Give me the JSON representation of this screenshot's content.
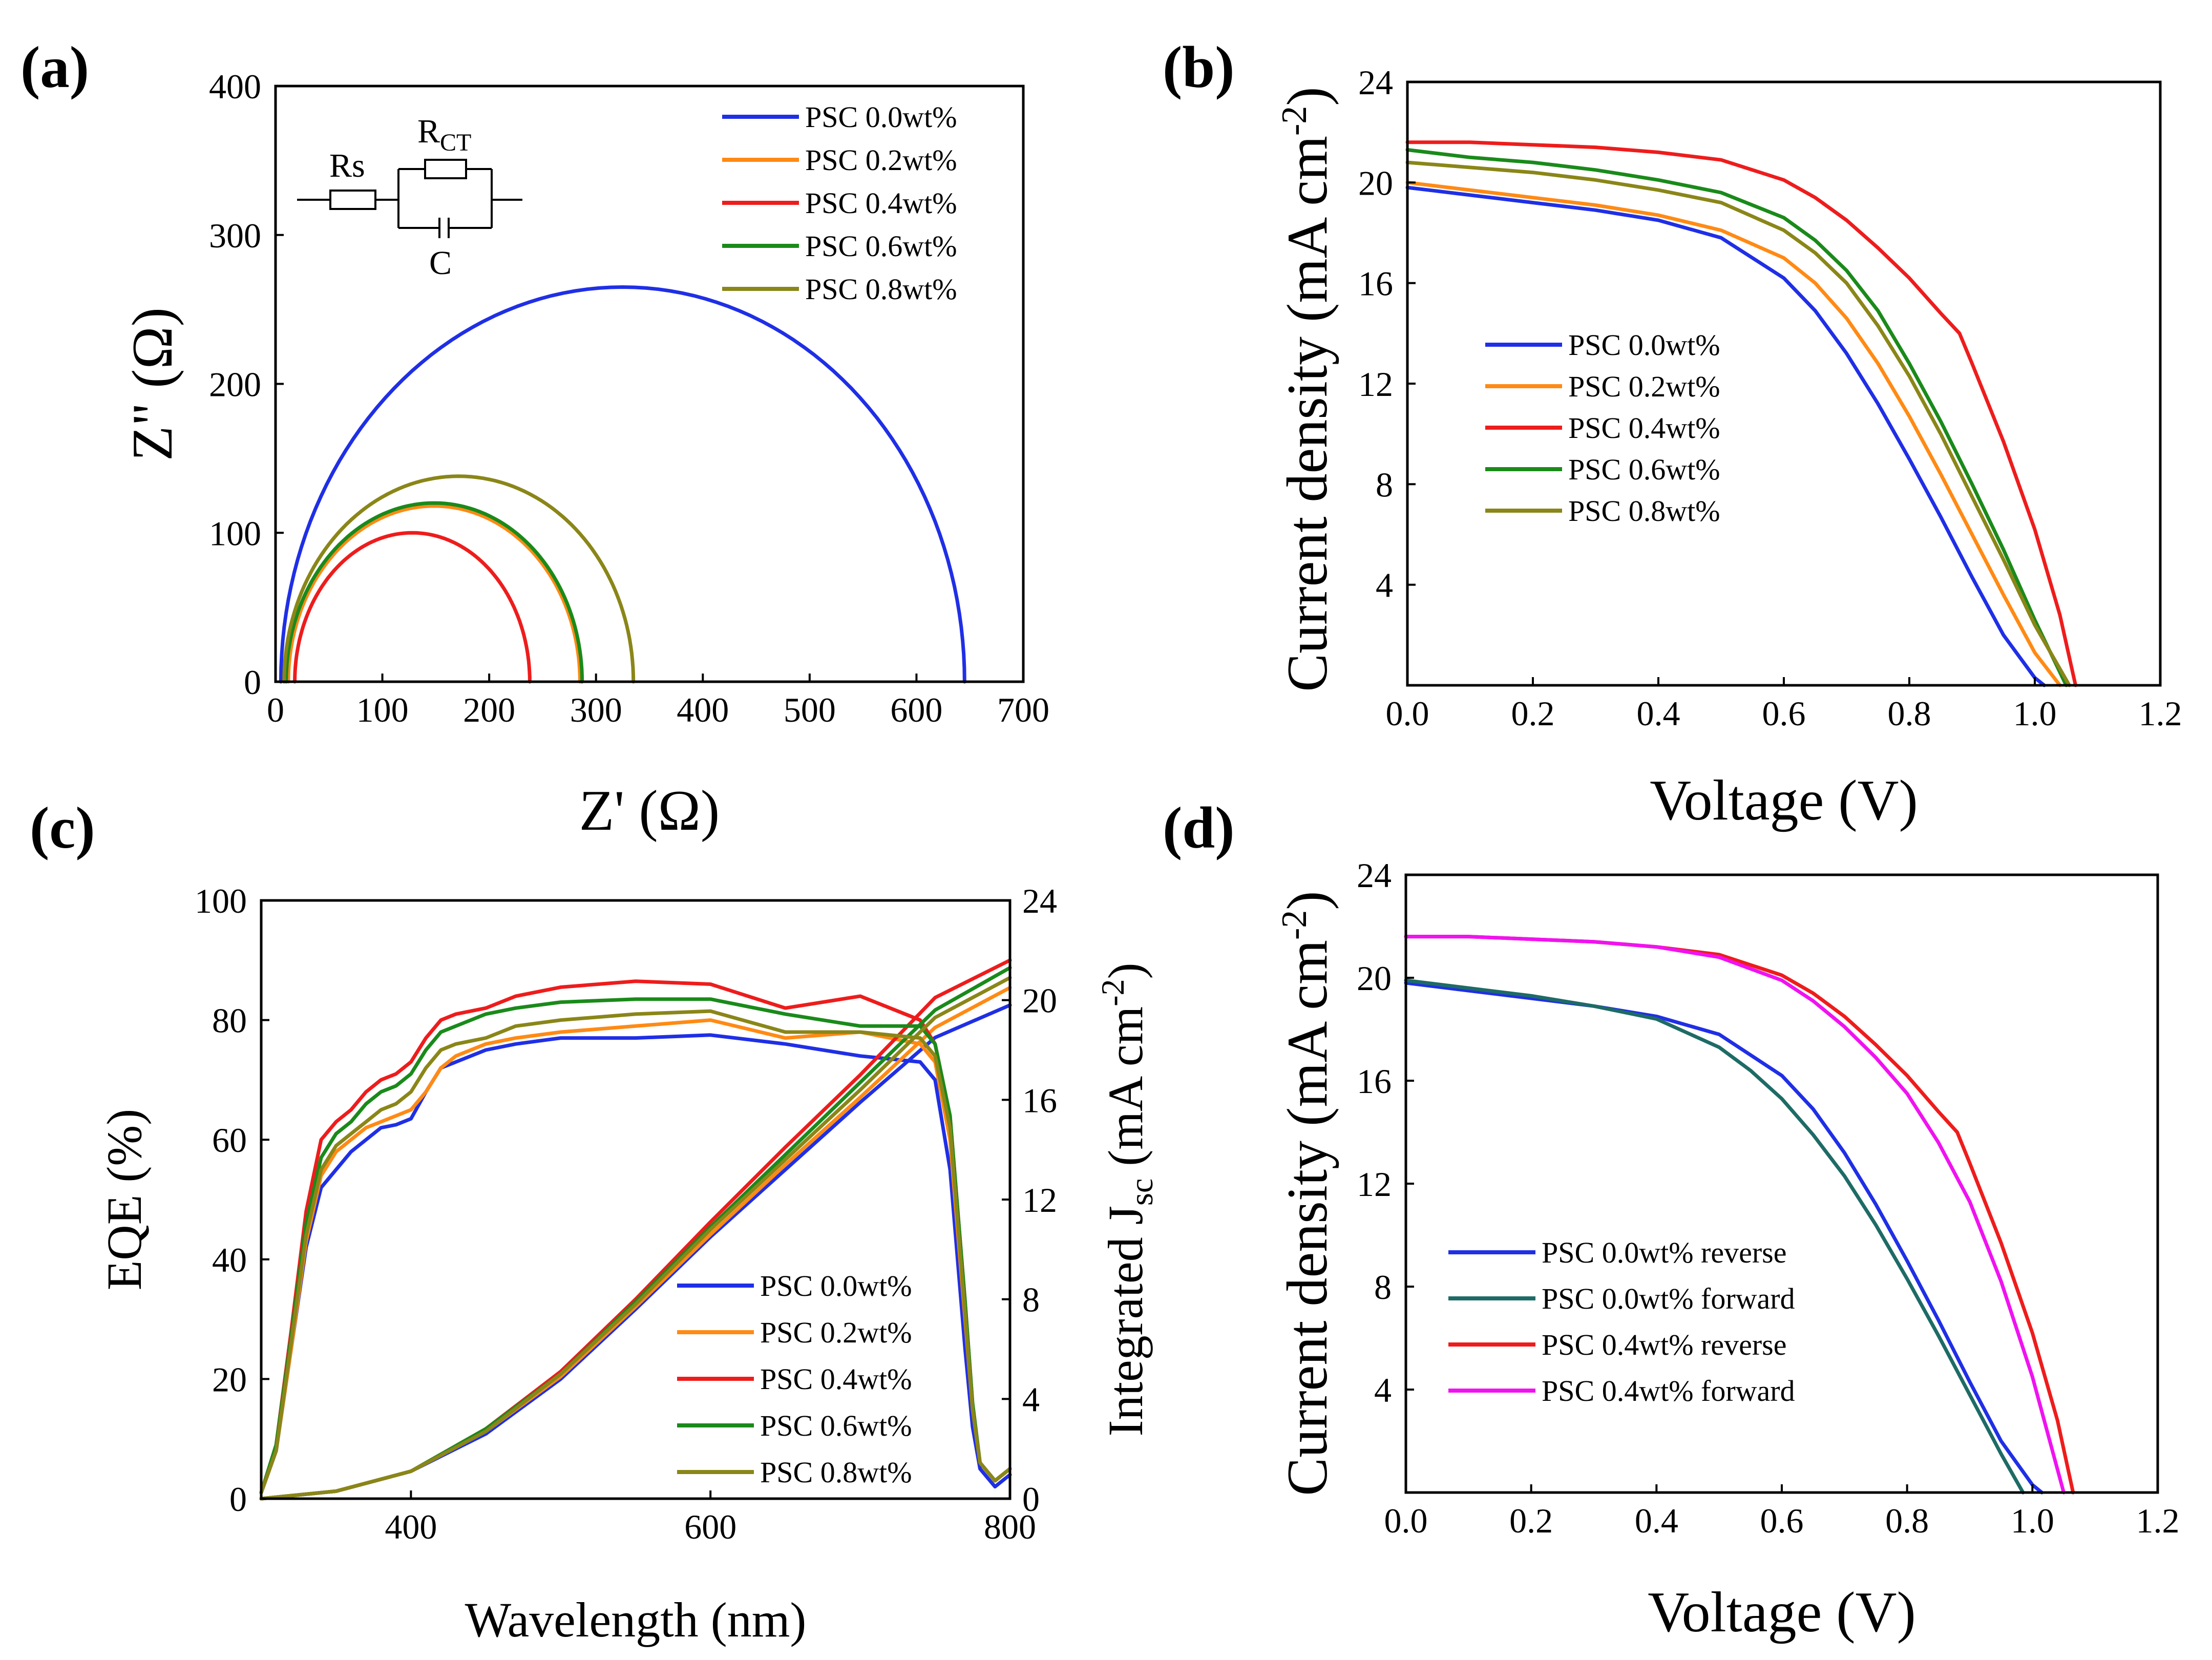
{
  "colors": {
    "psc_0_0": "#1f2fe6",
    "psc_0_2": "#ff8a14",
    "psc_0_4": "#ee1c1c",
    "psc_0_6": "#1a8a1a",
    "psc_0_8": "#8a8618",
    "psc_0_0_forward": "#1e6b66",
    "psc_0_4_forward": "#f012f0",
    "axis": "#000000"
  },
  "chart_data": [
    {
      "panel": "(a)",
      "type": "line",
      "title": "",
      "xlabel": "Z' (Ω)",
      "ylabel": "Z\" (Ω)",
      "xlim": [
        0,
        700
      ],
      "ylim": [
        0,
        400
      ],
      "xticks": [
        0,
        100,
        200,
        300,
        400,
        500,
        600,
        700
      ],
      "yticks": [
        0,
        100,
        200,
        300,
        400
      ],
      "legend_position": "top-right",
      "inset_circuit": {
        "rs": "Rs",
        "rct": "R",
        "rct_sub": "CT",
        "c": "C"
      },
      "series": [
        {
          "name": "PSC 0.0wt%",
          "color_key": "psc_0_0",
          "semicircle": {
            "x_start": 5,
            "x_end": 645,
            "peak": 265
          }
        },
        {
          "name": "PSC 0.2wt%",
          "color_key": "psc_0_2",
          "semicircle": {
            "x_start": 12,
            "x_end": 285,
            "peak": 118
          }
        },
        {
          "name": "PSC 0.4wt%",
          "color_key": "psc_0_4",
          "semicircle": {
            "x_start": 18,
            "x_end": 238,
            "peak": 100
          }
        },
        {
          "name": "PSC 0.6wt%",
          "color_key": "psc_0_6",
          "semicircle": {
            "x_start": 10,
            "x_end": 287,
            "peak": 120
          }
        },
        {
          "name": "PSC 0.8wt%",
          "color_key": "psc_0_8",
          "semicircle": {
            "x_start": 8,
            "x_end": 335,
            "peak": 138
          }
        }
      ]
    },
    {
      "panel": "(b)",
      "type": "line",
      "title": "",
      "xlabel": "Voltage (V)",
      "ylabel": "Current density (mA cm",
      "ylabel_sup": "-2",
      "ylabel_end": ")",
      "xlim": [
        0,
        1.2
      ],
      "ylim": [
        0,
        24
      ],
      "xticks": [
        "0.0",
        "0.2",
        "0.4",
        "0.6",
        "0.8",
        "1.0",
        "1.2"
      ],
      "yticks": [
        4,
        8,
        12,
        16,
        20,
        24
      ],
      "legend_position": "middle-left",
      "series": [
        {
          "name": "PSC 0.0wt%",
          "color_key": "psc_0_0",
          "x": [
            0,
            0.1,
            0.2,
            0.3,
            0.4,
            0.5,
            0.6,
            0.65,
            0.7,
            0.75,
            0.8,
            0.85,
            0.9,
            0.95,
            1.0,
            1.015
          ],
          "y": [
            19.8,
            19.5,
            19.2,
            18.9,
            18.5,
            17.8,
            16.2,
            14.9,
            13.2,
            11.2,
            9.0,
            6.7,
            4.3,
            2.0,
            0.3,
            0
          ]
        },
        {
          "name": "PSC 0.2wt%",
          "color_key": "psc_0_2",
          "x": [
            0,
            0.1,
            0.2,
            0.3,
            0.4,
            0.5,
            0.6,
            0.65,
            0.7,
            0.75,
            0.8,
            0.85,
            0.9,
            0.95,
            1.0,
            1.04
          ],
          "y": [
            20.0,
            19.7,
            19.4,
            19.1,
            18.7,
            18.1,
            17.0,
            16.0,
            14.6,
            12.8,
            10.7,
            8.4,
            6.0,
            3.6,
            1.3,
            0
          ]
        },
        {
          "name": "PSC 0.4wt%",
          "color_key": "psc_0_4",
          "x": [
            0,
            0.1,
            0.2,
            0.3,
            0.35,
            0.4,
            0.5,
            0.6,
            0.65,
            0.7,
            0.75,
            0.8,
            0.85,
            0.88,
            0.9,
            0.95,
            1.0,
            1.04,
            1.065
          ],
          "y": [
            21.6,
            21.6,
            21.5,
            21.4,
            21.3,
            21.2,
            20.9,
            20.1,
            19.4,
            18.5,
            17.4,
            16.2,
            14.8,
            14.0,
            12.8,
            9.7,
            6.2,
            2.8,
            0
          ]
        },
        {
          "name": "PSC 0.6wt%",
          "color_key": "psc_0_6",
          "x": [
            0,
            0.1,
            0.2,
            0.3,
            0.4,
            0.5,
            0.6,
            0.65,
            0.7,
            0.75,
            0.8,
            0.85,
            0.9,
            0.95,
            1.0,
            1.05
          ],
          "y": [
            21.3,
            21.0,
            20.8,
            20.5,
            20.1,
            19.6,
            18.6,
            17.7,
            16.5,
            14.9,
            12.8,
            10.5,
            8.0,
            5.4,
            2.6,
            0
          ]
        },
        {
          "name": "PSC 0.8wt%",
          "color_key": "psc_0_8",
          "x": [
            0,
            0.1,
            0.2,
            0.3,
            0.4,
            0.5,
            0.6,
            0.65,
            0.7,
            0.75,
            0.8,
            0.85,
            0.9,
            0.95,
            1.0,
            1.055
          ],
          "y": [
            20.8,
            20.6,
            20.4,
            20.1,
            19.7,
            19.2,
            18.1,
            17.2,
            16.0,
            14.3,
            12.3,
            10.0,
            7.5,
            5.0,
            2.4,
            0
          ]
        }
      ]
    },
    {
      "panel": "(c)",
      "type": "line",
      "title": "",
      "xlabel": "Wavelength (nm)",
      "ylabel": "EQE (%)",
      "ylabel_right": "Integrated J",
      "ylabel_right_sub": "sc",
      "ylabel_right_mid": " (mA cm",
      "ylabel_right_sup": "-2",
      "ylabel_right_end": ")",
      "xlim": [
        300,
        800
      ],
      "ylim": [
        0,
        100
      ],
      "ylim_right": [
        0,
        24
      ],
      "xticks": [
        400,
        600,
        800
      ],
      "yticks": [
        0,
        20,
        40,
        60,
        80,
        100
      ],
      "yticks_right": [
        0,
        4,
        8,
        12,
        16,
        20,
        24
      ],
      "legend_position": "bottom-right",
      "series": [
        {
          "name": "PSC 0.0wt%",
          "color_key": "psc_0_0",
          "eqe_x": [
            300,
            310,
            320,
            330,
            340,
            350,
            360,
            370,
            380,
            390,
            400,
            410,
            420,
            430,
            450,
            470,
            500,
            550,
            600,
            650,
            700,
            740,
            750,
            760,
            770,
            775,
            780,
            790,
            800
          ],
          "eqe_y": [
            1,
            8,
            25,
            42,
            52,
            55,
            58,
            60,
            62,
            62.5,
            63.5,
            68,
            72,
            73,
            75,
            76,
            77,
            77,
            77.5,
            76,
            74,
            73,
            70,
            55,
            25,
            12,
            5,
            2,
            4
          ],
          "jsc_x": [
            300,
            350,
            400,
            450,
            500,
            550,
            600,
            650,
            700,
            750,
            800
          ],
          "jsc_y": [
            0.0,
            0.3,
            1.1,
            2.6,
            4.8,
            7.6,
            10.5,
            13.2,
            15.9,
            18.5,
            19.8
          ]
        },
        {
          "name": "PSC 0.2wt%",
          "color_key": "psc_0_2",
          "eqe_x": [
            300,
            310,
            320,
            330,
            340,
            350,
            360,
            370,
            380,
            390,
            400,
            410,
            420,
            430,
            450,
            470,
            500,
            550,
            600,
            650,
            700,
            740,
            750,
            760,
            770,
            775,
            780,
            790,
            800
          ],
          "eqe_y": [
            1,
            8,
            25,
            43,
            54,
            58,
            60,
            62,
            63,
            64,
            65,
            68,
            72,
            74,
            76,
            77,
            78,
            79,
            80,
            77,
            78,
            76,
            73,
            60,
            30,
            15,
            6,
            3,
            5
          ],
          "jsc_x": [
            300,
            350,
            400,
            450,
            500,
            550,
            600,
            650,
            700,
            750,
            800
          ],
          "jsc_y": [
            0.0,
            0.3,
            1.1,
            2.7,
            4.9,
            7.7,
            10.6,
            13.4,
            16.1,
            18.9,
            20.5
          ]
        },
        {
          "name": "PSC 0.4wt%",
          "color_key": "psc_0_4",
          "eqe_x": [
            300,
            310,
            320,
            330,
            340,
            350,
            360,
            370,
            380,
            390,
            400,
            410,
            420,
            430,
            450,
            470,
            500,
            550,
            600,
            650,
            700,
            740,
            750,
            760,
            770,
            775,
            780,
            790,
            800
          ],
          "eqe_y": [
            1,
            9,
            28,
            48,
            60,
            63,
            65,
            68,
            70,
            71,
            73,
            77,
            80,
            81,
            82,
            84,
            85.5,
            86.5,
            86,
            82,
            84,
            80,
            76,
            64,
            33,
            16,
            6,
            3,
            5
          ],
          "jsc_x": [
            300,
            350,
            400,
            450,
            500,
            550,
            600,
            650,
            700,
            750,
            800
          ],
          "jsc_y": [
            0.0,
            0.3,
            1.1,
            2.8,
            5.1,
            8.0,
            11.1,
            14.1,
            17.0,
            20.1,
            21.6
          ]
        },
        {
          "name": "PSC 0.6wt%",
          "color_key": "psc_0_6",
          "eqe_x": [
            300,
            310,
            320,
            330,
            340,
            350,
            360,
            370,
            380,
            390,
            400,
            410,
            420,
            430,
            450,
            470,
            500,
            550,
            600,
            650,
            700,
            740,
            750,
            760,
            770,
            775,
            780,
            790,
            800
          ],
          "eqe_y": [
            1,
            9,
            27,
            46,
            57,
            61,
            63,
            66,
            68,
            69,
            71,
            75,
            78,
            79,
            81,
            82,
            83,
            83.5,
            83.5,
            81,
            79,
            79,
            76,
            64,
            33,
            16,
            6,
            3,
            5
          ],
          "jsc_x": [
            300,
            350,
            400,
            450,
            500,
            550,
            600,
            650,
            700,
            750,
            800
          ],
          "jsc_y": [
            0.0,
            0.3,
            1.1,
            2.8,
            5.0,
            7.9,
            10.9,
            13.8,
            16.7,
            19.6,
            21.3
          ]
        },
        {
          "name": "PSC 0.8wt%",
          "color_key": "psc_0_8",
          "eqe_x": [
            300,
            310,
            320,
            330,
            340,
            350,
            360,
            370,
            380,
            390,
            400,
            410,
            420,
            430,
            450,
            470,
            500,
            550,
            600,
            650,
            700,
            740,
            750,
            760,
            770,
            775,
            780,
            790,
            800
          ],
          "eqe_y": [
            1,
            8,
            26,
            44,
            55,
            59,
            61,
            63,
            65,
            66,
            68,
            72,
            75,
            76,
            77,
            79,
            80,
            81,
            81.5,
            78,
            78,
            77,
            74,
            62,
            31,
            15,
            6,
            3,
            5
          ],
          "jsc_x": [
            300,
            350,
            400,
            450,
            500,
            550,
            600,
            650,
            700,
            750,
            800
          ],
          "jsc_y": [
            0.0,
            0.3,
            1.1,
            2.7,
            5.0,
            7.8,
            10.8,
            13.6,
            16.4,
            19.3,
            20.9
          ]
        }
      ]
    },
    {
      "panel": "(d)",
      "type": "line",
      "title": "",
      "xlabel": "Voltage (V)",
      "ylabel": "Current density (mA cm",
      "ylabel_sup": "-2",
      "ylabel_end": ")",
      "xlim": [
        0,
        1.2
      ],
      "ylim": [
        0,
        24
      ],
      "xticks": [
        "0.0",
        "0.2",
        "0.4",
        "0.6",
        "0.8",
        "1.0",
        "1.2"
      ],
      "yticks": [
        4,
        8,
        12,
        16,
        20,
        24
      ],
      "legend_position": "bottom-left",
      "series": [
        {
          "name": "PSC 0.0wt% reverse",
          "color_key": "psc_0_0",
          "x": [
            0,
            0.1,
            0.2,
            0.3,
            0.4,
            0.5,
            0.6,
            0.65,
            0.7,
            0.75,
            0.8,
            0.85,
            0.9,
            0.95,
            1.0,
            1.015
          ],
          "y": [
            19.8,
            19.5,
            19.2,
            18.9,
            18.5,
            17.8,
            16.2,
            14.9,
            13.2,
            11.2,
            9.0,
            6.7,
            4.3,
            2.0,
            0.3,
            0
          ]
        },
        {
          "name": "PSC 0.0wt% forward",
          "color_key": "psc_0_0_forward",
          "x": [
            0,
            0.1,
            0.2,
            0.3,
            0.4,
            0.5,
            0.55,
            0.6,
            0.65,
            0.7,
            0.75,
            0.8,
            0.85,
            0.9,
            0.95,
            0.985
          ],
          "y": [
            19.9,
            19.6,
            19.3,
            18.9,
            18.4,
            17.3,
            16.4,
            15.3,
            13.9,
            12.3,
            10.4,
            8.3,
            6.1,
            3.8,
            1.5,
            0
          ]
        },
        {
          "name": "PSC 0.4wt% reverse",
          "color_key": "psc_0_4",
          "x": [
            0,
            0.1,
            0.2,
            0.3,
            0.35,
            0.4,
            0.5,
            0.6,
            0.65,
            0.7,
            0.75,
            0.8,
            0.85,
            0.88,
            0.9,
            0.95,
            1.0,
            1.04,
            1.065
          ],
          "y": [
            21.6,
            21.6,
            21.5,
            21.4,
            21.3,
            21.2,
            20.9,
            20.1,
            19.4,
            18.5,
            17.4,
            16.2,
            14.8,
            14.0,
            12.8,
            9.7,
            6.2,
            2.8,
            0
          ]
        },
        {
          "name": "PSC 0.4wt% forward",
          "color_key": "psc_0_4_forward",
          "x": [
            0,
            0.1,
            0.2,
            0.3,
            0.35,
            0.4,
            0.5,
            0.6,
            0.65,
            0.7,
            0.75,
            0.8,
            0.85,
            0.9,
            0.95,
            1.0,
            1.05
          ],
          "y": [
            21.6,
            21.6,
            21.5,
            21.4,
            21.3,
            21.2,
            20.8,
            19.9,
            19.1,
            18.1,
            16.9,
            15.5,
            13.6,
            11.3,
            8.2,
            4.5,
            0
          ]
        }
      ]
    }
  ]
}
